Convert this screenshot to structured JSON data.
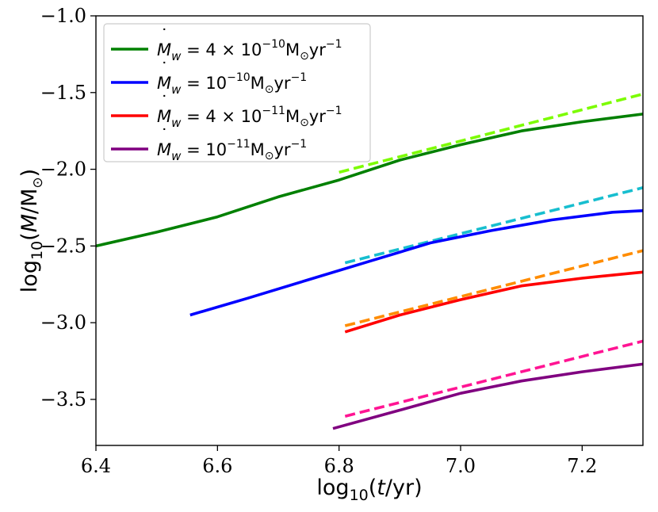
{
  "chart_data": {
    "type": "line",
    "title": "",
    "xlabel": {
      "pre": "log",
      "sub": "10",
      "open": "(",
      "var": "t",
      "post": "/yr)"
    },
    "ylabel": {
      "pre": "log",
      "sub": "10",
      "open": "(",
      "var": "M",
      "post": "/M",
      "sun_sub": "⊙",
      "close": ")"
    },
    "xlim": [
      6.4,
      7.3
    ],
    "ylim": [
      -3.8,
      -1.0
    ],
    "xticks": [
      {
        "v": 6.4,
        "label": "6.4"
      },
      {
        "v": 6.6,
        "label": "6.6"
      },
      {
        "v": 6.8,
        "label": "6.8"
      },
      {
        "v": 7.0,
        "label": "7.0"
      },
      {
        "v": 7.2,
        "label": "7.2"
      }
    ],
    "yticks": [
      {
        "v": -1.0,
        "label": "−1.0"
      },
      {
        "v": -1.5,
        "label": "−1.5"
      },
      {
        "v": -2.0,
        "label": "−2.0"
      },
      {
        "v": -2.5,
        "label": "−2.5"
      },
      {
        "v": -3.0,
        "label": "−3.0"
      },
      {
        "v": -3.5,
        "label": "−3.5"
      }
    ],
    "grid": false,
    "legend_position": "top-left",
    "series": [
      {
        "name": "Mdot_w = 4e-10",
        "color": "#008000",
        "style": "solid",
        "legend": {
          "coef": "4 × 10",
          "exp": "−10"
        },
        "x": [
          6.4,
          6.5,
          6.6,
          6.7,
          6.8,
          6.9,
          7.0,
          7.1,
          7.2,
          7.3
        ],
        "y": [
          -2.5,
          -2.41,
          -2.31,
          -2.18,
          -2.07,
          -1.94,
          -1.84,
          -1.75,
          -1.69,
          -1.64
        ]
      },
      {
        "name": "Mdot_w = 1e-10",
        "color": "#0000ff",
        "style": "solid",
        "legend": {
          "coef": "10",
          "exp": "−10"
        },
        "x": [
          6.555,
          6.65,
          6.75,
          6.85,
          6.95,
          7.05,
          7.15,
          7.25,
          7.3
        ],
        "y": [
          -2.95,
          -2.84,
          -2.72,
          -2.6,
          -2.48,
          -2.4,
          -2.33,
          -2.28,
          -2.27
        ]
      },
      {
        "name": "Mdot_w = 4e-11",
        "color": "#ff0000",
        "style": "solid",
        "legend": {
          "coef": "4 × 10",
          "exp": "−11"
        },
        "x": [
          6.81,
          6.9,
          7.0,
          7.1,
          7.2,
          7.3
        ],
        "y": [
          -3.06,
          -2.95,
          -2.85,
          -2.76,
          -2.71,
          -2.67
        ]
      },
      {
        "name": "Mdot_w = 1e-11",
        "color": "#800080",
        "style": "solid",
        "legend": {
          "coef": "10",
          "exp": "−11"
        },
        "x": [
          6.79,
          6.9,
          7.0,
          7.1,
          7.2,
          7.3
        ],
        "y": [
          -3.69,
          -3.57,
          -3.46,
          -3.38,
          -3.32,
          -3.27
        ]
      },
      {
        "name": "fit 4e-10",
        "color": "#7cfc00",
        "style": "dashed",
        "x": [
          6.8,
          7.3
        ],
        "y": [
          -2.02,
          -1.51
        ]
      },
      {
        "name": "fit 1e-10",
        "color": "#17becf",
        "style": "dashed",
        "x": [
          6.81,
          7.3
        ],
        "y": [
          -2.61,
          -2.12
        ]
      },
      {
        "name": "fit 4e-11",
        "color": "#ff8c00",
        "style": "dashed",
        "x": [
          6.81,
          7.3
        ],
        "y": [
          -3.02,
          -2.53
        ]
      },
      {
        "name": "fit 1e-11",
        "color": "#ff1493",
        "style": "dashed",
        "x": [
          6.81,
          7.3
        ],
        "y": [
          -3.61,
          -3.12
        ]
      }
    ],
    "legend_entries": {
      "mdot_symbol": "M",
      "mdot_dot": "˙",
      "mdot_sub": "w",
      "eq": " = ",
      "unit_m": "M",
      "unit_sun": "⊙",
      "unit_yr": "yr",
      "unit_exp": "−1"
    }
  }
}
